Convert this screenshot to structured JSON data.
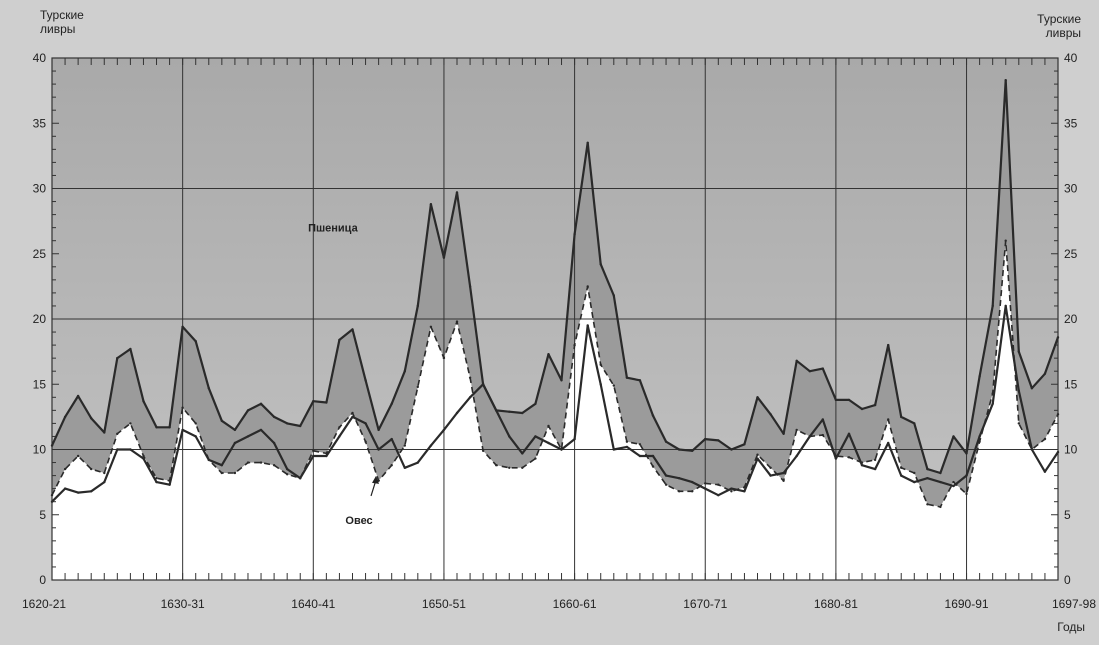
{
  "chart_data": {
    "type": "line",
    "ylabel_left": "Турские\nливры",
    "ylabel_right": "Турские\nливры",
    "xlabel": "Годы",
    "ylim": [
      0,
      40
    ],
    "yticks": [
      0,
      5,
      10,
      15,
      20,
      25,
      30,
      35,
      40
    ],
    "x_start": 1620,
    "x_end": 1697,
    "xtick_labels": [
      {
        "year": 1620,
        "label": "1620-21"
      },
      {
        "year": 1630,
        "label": "1630-31"
      },
      {
        "year": 1640,
        "label": "1640-41"
      },
      {
        "year": 1650,
        "label": "1650-51"
      },
      {
        "year": 1660,
        "label": "1660-61"
      },
      {
        "year": 1670,
        "label": "1670-71"
      },
      {
        "year": 1680,
        "label": "1680-81"
      },
      {
        "year": 1690,
        "label": "1690-91"
      },
      {
        "year": 1697,
        "label": "1697-98"
      }
    ],
    "horizontal_gridlines": [
      10,
      20,
      30
    ],
    "series": [
      {
        "name": "Пшеница",
        "style": "solid",
        "color": "#2a2a2a",
        "values": [
          10.3,
          12.5,
          14.1,
          12.4,
          11.3,
          17,
          17.7,
          13.7,
          11.7,
          11.7,
          19.4,
          18.3,
          14.7,
          12.2,
          11.5,
          13,
          13.5,
          12.5,
          12,
          11.8,
          13.7,
          13.6,
          18.4,
          19.2,
          15.3,
          11.5,
          13.5,
          16,
          21,
          28.8,
          24.7,
          29.7,
          22.5,
          15,
          13,
          12.9,
          12.8,
          13.5,
          17.3,
          15.3,
          26.5,
          33.5,
          24.2,
          21.8,
          15.5,
          15.3,
          12.6,
          10.6,
          10,
          9.9,
          10.8,
          10.7,
          10,
          10.4,
          14,
          12.7,
          11.2,
          16.8,
          16,
          16.2,
          13.8,
          13.8,
          13.1,
          13.4,
          18,
          12.5,
          12,
          8.5,
          8.2,
          11,
          9.7,
          15.6,
          21,
          38.3,
          17.5,
          14.7,
          15.8,
          18.6
        ]
      },
      {
        "name": "",
        "style": "dashed",
        "color": "#2a2a2a",
        "values": [
          6.5,
          8.5,
          9.5,
          8.5,
          8.2,
          11.2,
          12,
          9.5,
          7.8,
          7.6,
          13.2,
          12,
          9.2,
          8.2,
          8.2,
          9,
          9,
          8.8,
          8.1,
          7.8,
          9.9,
          9.7,
          11.7,
          12.8,
          10.6,
          7.6,
          8.8,
          10.3,
          14.8,
          19.4,
          17,
          19.8,
          15.5,
          9.9,
          8.8,
          8.6,
          8.6,
          9.3,
          11.8,
          10,
          18,
          22.5,
          16.5,
          14.9,
          10.6,
          10.4,
          8.7,
          7.3,
          6.8,
          6.8,
          7.4,
          7.3,
          6.8,
          7.1,
          9.6,
          8.6,
          7.6,
          11.5,
          11,
          11.1,
          9.5,
          9.4,
          9,
          9.2,
          12.3,
          8.6,
          8.2,
          5.8,
          5.6,
          7.5,
          6.6,
          10.6,
          14.3,
          26,
          12,
          10,
          10.8,
          12.7
        ]
      },
      {
        "name": "Овес",
        "style": "solid",
        "color": "#2a2a2a",
        "values": [
          6,
          7,
          6.7,
          6.8,
          7.5,
          10,
          10,
          9.3,
          7.5,
          7.3,
          11.5,
          11,
          9.2,
          8.8,
          10.5,
          11,
          11.5,
          10.5,
          8.5,
          7.8,
          9.5,
          9.5,
          11,
          12.5,
          12,
          10,
          10.8,
          8.6,
          9,
          10.3,
          11.5,
          12.8,
          14,
          15,
          13,
          11,
          9.7,
          11,
          10.5,
          10,
          10.8,
          19.5,
          15,
          10,
          10.2,
          9.5,
          9.5,
          8,
          7.8,
          7.5,
          7,
          6.5,
          7,
          6.8,
          9.3,
          8,
          8.2,
          9.5,
          11,
          12.3,
          9.3,
          11.2,
          8.8,
          8.5,
          10.5,
          8,
          7.5,
          7.8,
          7.5,
          7.2,
          8,
          11,
          13.5,
          21,
          14.5,
          10,
          8.3,
          9.8
        ]
      }
    ],
    "annotations": [
      {
        "text": "Пшеница",
        "year": 1641.5,
        "value": 26.7
      },
      {
        "text": "Овес",
        "year": 1643.5,
        "value": 4.3
      }
    ]
  }
}
